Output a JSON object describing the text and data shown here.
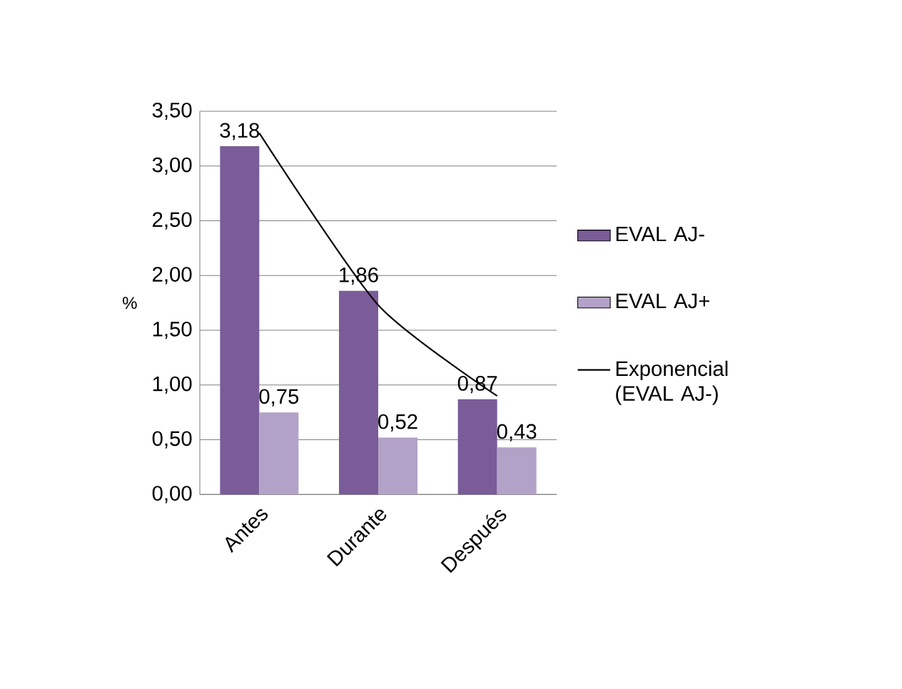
{
  "chart_data": {
    "type": "bar",
    "ylabel": "%",
    "categories": [
      "Antes",
      "Durante",
      "Después"
    ],
    "series": [
      {
        "name": "EVAL AJ-",
        "color": "#7a5c99",
        "values": [
          3.18,
          1.86,
          0.87
        ],
        "value_labels": [
          "3,18",
          "1,86",
          "0,87"
        ]
      },
      {
        "name": "EVAL AJ+",
        "color": "#b3a2c7",
        "values": [
          0.75,
          0.52,
          0.43
        ],
        "value_labels": [
          "0,75",
          "0,52",
          "0,43"
        ]
      },
      {
        "name": "Exponencial (EVAL AJ-)",
        "type": "line",
        "color": "#000000",
        "values": [
          3.3,
          1.73,
          0.9
        ]
      }
    ],
    "ylim": [
      0,
      3.5
    ],
    "yticks": [
      {
        "value": 0,
        "label": "0,00"
      },
      {
        "value": 0.5,
        "label": "0,50"
      },
      {
        "value": 1,
        "label": "1,00"
      },
      {
        "value": 1.5,
        "label": "1,50"
      },
      {
        "value": 2,
        "label": "2,00"
      },
      {
        "value": 2.5,
        "label": "2,50"
      },
      {
        "value": 3,
        "label": "3,00"
      },
      {
        "value": 3.5,
        "label": "3,50"
      }
    ],
    "grid": "y",
    "legend": "right",
    "marker": "none",
    "line_style": "solid"
  }
}
